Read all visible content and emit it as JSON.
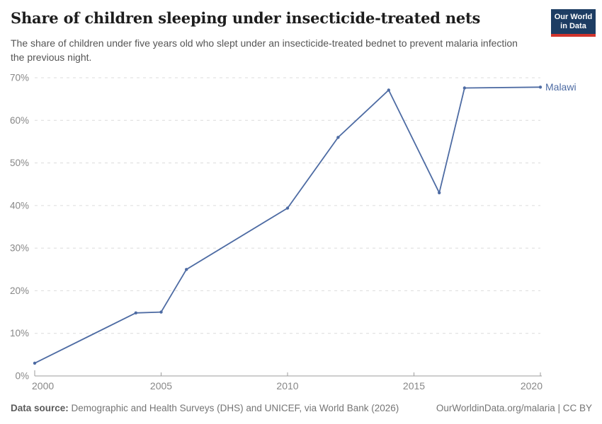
{
  "header": {
    "logo": {
      "line1": "Our World",
      "line2": "in Data",
      "bg_color": "#1d3d63",
      "accent_color": "#d1342c"
    }
  },
  "chart_data": {
    "type": "line",
    "title": "Share of children sleeping under insecticide-treated nets",
    "subtitle": "The share of children under five years old who slept under an insecticide-treated bednet to prevent malaria infection the previous night.",
    "x": [
      2000,
      2004,
      2005,
      2006,
      2010,
      2012,
      2014,
      2016,
      2017,
      2020
    ],
    "series": [
      {
        "name": "Malawi",
        "values": [
          3,
          14.8,
          15,
          25,
          39.4,
          56,
          67.1,
          43,
          67.6,
          67.8
        ]
      }
    ],
    "xlabel": "",
    "ylabel": "",
    "xticks": [
      2000,
      2005,
      2010,
      2015,
      2020
    ],
    "yticks": [
      0,
      10,
      20,
      30,
      40,
      50,
      60,
      70
    ],
    "ytick_suffix": "%",
    "xlim": [
      2000,
      2020
    ],
    "ylim": [
      0,
      70
    ],
    "grid": "horizontal-dashed",
    "legend_position": "line-end-label",
    "colors": {
      "line": "#4d6ba3",
      "grid": "#dcdcdc",
      "axis": "#9e9e9e",
      "tick_label": "#878787"
    }
  },
  "footer": {
    "source_label": "Data source:",
    "source_text": "Demographic and Health Surveys (DHS) and UNICEF, via World Bank (2026)",
    "link_text": "OurWorldinData.org/malaria | CC BY"
  }
}
